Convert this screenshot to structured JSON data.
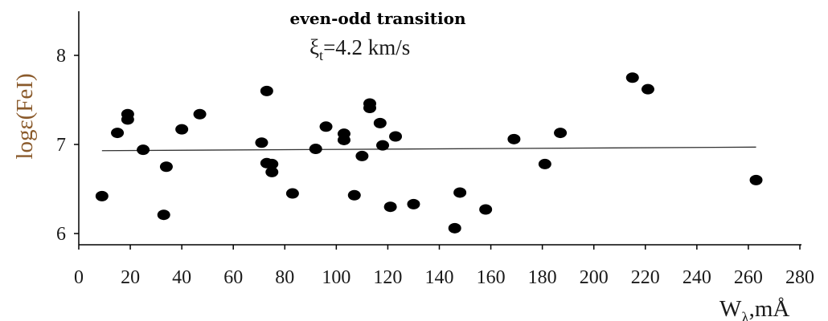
{
  "chart_data": {
    "type": "scatter",
    "title": "even-odd transition",
    "subtitle": "ξ",
    "subtitle_sub": "t",
    "subtitle_rest": "=4.2 km/s",
    "ylabel": "logε(FeI)",
    "xlabel": "W",
    "xlabel_sub": "λ",
    "xlabel_rest": ",mÅ",
    "xlim": [
      0,
      280
    ],
    "ylim": [
      5.9,
      8.5
    ],
    "xticks": [
      "0",
      "20",
      "40",
      "60",
      "80",
      "100",
      "120",
      "140",
      "160",
      "180",
      "200",
      "220",
      "240",
      "260",
      "280"
    ],
    "yticks": [
      "6",
      "7",
      "8"
    ],
    "grid": false,
    "marker_color": "#000000",
    "trend_line": {
      "x": [
        9,
        263
      ],
      "y": [
        6.93,
        6.97
      ]
    },
    "points": [
      {
        "x": 9,
        "y": 6.42
      },
      {
        "x": 15,
        "y": 7.13
      },
      {
        "x": 19,
        "y": 7.34
      },
      {
        "x": 19,
        "y": 7.28
      },
      {
        "x": 25,
        "y": 6.94
      },
      {
        "x": 33,
        "y": 6.21
      },
      {
        "x": 34,
        "y": 6.75
      },
      {
        "x": 40,
        "y": 7.17
      },
      {
        "x": 47,
        "y": 7.34
      },
      {
        "x": 71,
        "y": 7.02
      },
      {
        "x": 73,
        "y": 7.6
      },
      {
        "x": 73,
        "y": 6.79
      },
      {
        "x": 75,
        "y": 6.78
      },
      {
        "x": 75,
        "y": 6.69
      },
      {
        "x": 83,
        "y": 6.45
      },
      {
        "x": 92,
        "y": 6.95
      },
      {
        "x": 96,
        "y": 7.2
      },
      {
        "x": 103,
        "y": 7.12
      },
      {
        "x": 103,
        "y": 7.05
      },
      {
        "x": 107,
        "y": 6.43
      },
      {
        "x": 110,
        "y": 6.87
      },
      {
        "x": 113,
        "y": 7.46
      },
      {
        "x": 113,
        "y": 7.41
      },
      {
        "x": 117,
        "y": 7.24
      },
      {
        "x": 118,
        "y": 6.99
      },
      {
        "x": 121,
        "y": 6.3
      },
      {
        "x": 123,
        "y": 7.09
      },
      {
        "x": 130,
        "y": 6.33
      },
      {
        "x": 146,
        "y": 6.06
      },
      {
        "x": 148,
        "y": 6.46
      },
      {
        "x": 158,
        "y": 6.27
      },
      {
        "x": 169,
        "y": 7.06
      },
      {
        "x": 181,
        "y": 6.78
      },
      {
        "x": 187,
        "y": 7.13
      },
      {
        "x": 215,
        "y": 7.75
      },
      {
        "x": 221,
        "y": 7.62
      },
      {
        "x": 263,
        "y": 6.6
      }
    ]
  }
}
